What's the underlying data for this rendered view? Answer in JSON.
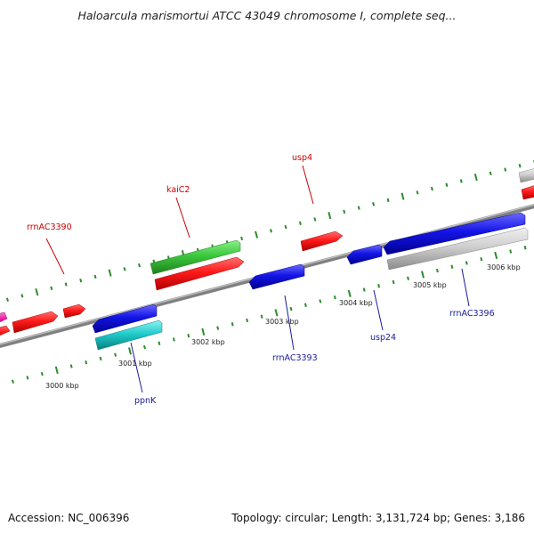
{
  "title": "Haloarcula marismortui ATCC 43049 chromosome I, complete seq...",
  "footer": {
    "accession": "Accession: NC_006396",
    "stats": "Topology: circular; Length: 3,131,724 bp; Genes: 3,186"
  },
  "colors": {
    "backbone": "#808080",
    "ticks": "#2e8b2e",
    "forward_label": "#cc0000",
    "reverse_label": "#1a1aa0"
  },
  "ticks": [
    {
      "label": "3000 kbp"
    },
    {
      "label": "3001 kbp"
    },
    {
      "label": "3002 kbp"
    },
    {
      "label": "3003 kbp"
    },
    {
      "label": "3004 kbp"
    },
    {
      "label": "3005 kbp"
    },
    {
      "label": "3006 kbp"
    }
  ],
  "labels": [
    {
      "text": "rrnAC3390",
      "strand": "forward"
    },
    {
      "text": "kaiC2",
      "strand": "forward"
    },
    {
      "text": "usp4",
      "strand": "forward"
    },
    {
      "text": "ppnK",
      "strand": "reverse"
    },
    {
      "text": "rrnAC3393",
      "strand": "reverse"
    },
    {
      "text": "usp24",
      "strand": "reverse"
    },
    {
      "text": "rrnAC3396",
      "strand": "reverse"
    }
  ]
}
